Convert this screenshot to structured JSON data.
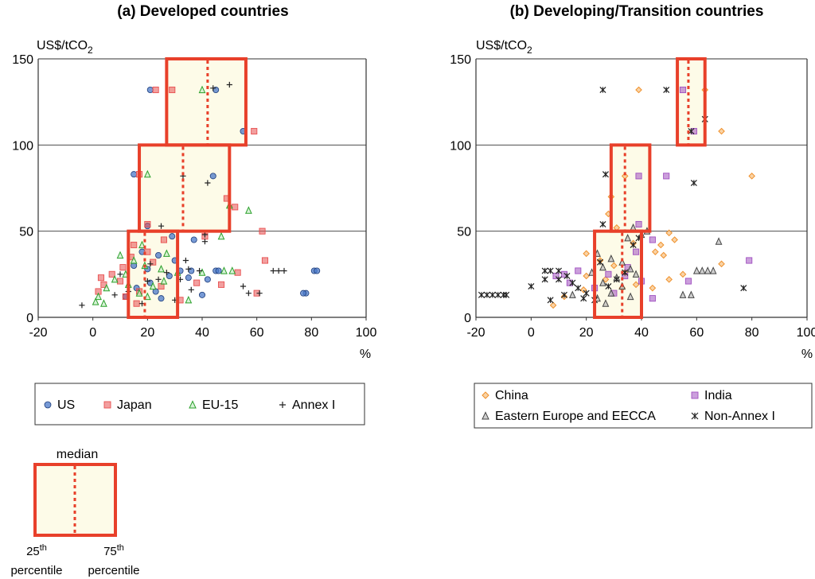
{
  "chart_data": [
    {
      "type": "scatter",
      "title": "(a) Developed countries",
      "ylabel": "US$/tCO",
      "ylabel_sub": "2",
      "xlabel": "%",
      "xlim": [
        -20,
        100
      ],
      "ylim": [
        0,
        150
      ],
      "xticks": [
        "-20",
        "0",
        "20",
        "40",
        "60",
        "80",
        "100"
      ],
      "yticks": [
        "0",
        "50",
        "100",
        "150"
      ],
      "grid": "horizontal",
      "legend_position": "below",
      "boxes": [
        {
          "y_range": [
            0,
            50
          ],
          "p25": 13,
          "median": 19,
          "p75": 31
        },
        {
          "y_range": [
            50,
            100
          ],
          "p25": 17,
          "median": 33,
          "p75": 50
        },
        {
          "y_range": [
            100,
            150
          ],
          "p25": 27,
          "median": 42,
          "p75": 56
        }
      ],
      "series": [
        {
          "name": "US",
          "marker": "circle",
          "color": "#4a78c8",
          "points": [
            [
              21,
              132
            ],
            [
              45,
              132
            ],
            [
              15,
              83
            ],
            [
              44,
              82
            ],
            [
              55,
              108
            ],
            [
              20,
              53
            ],
            [
              37,
              45
            ],
            [
              18,
              38
            ],
            [
              24,
              36
            ],
            [
              30,
              33
            ],
            [
              15,
              30
            ],
            [
              20,
              28
            ],
            [
              32,
              27
            ],
            [
              36,
              27
            ],
            [
              45,
              27
            ],
            [
              46,
              27
            ],
            [
              81,
              27
            ],
            [
              82,
              27
            ],
            [
              28,
              24
            ],
            [
              35,
              23
            ],
            [
              42,
              22
            ],
            [
              21,
              20
            ],
            [
              16,
              17
            ],
            [
              23,
              15
            ],
            [
              12,
              12
            ],
            [
              25,
              11
            ],
            [
              78,
              14
            ],
            [
              77,
              14
            ],
            [
              29,
              47
            ],
            [
              40,
              13
            ]
          ]
        },
        {
          "name": "Japan",
          "marker": "square",
          "color": "#e85050",
          "points": [
            [
              29,
              132
            ],
            [
              23,
              132
            ],
            [
              17,
              83
            ],
            [
              59,
              108
            ],
            [
              49,
              69
            ],
            [
              52,
              64
            ],
            [
              20,
              54
            ],
            [
              41,
              47
            ],
            [
              62,
              50
            ],
            [
              15,
              42
            ],
            [
              20,
              38
            ],
            [
              14,
              35
            ],
            [
              22,
              32
            ],
            [
              63,
              33
            ],
            [
              3,
              23
            ],
            [
              7,
              25
            ],
            [
              4,
              19
            ],
            [
              10,
              21
            ],
            [
              25,
              18
            ],
            [
              17,
              15
            ],
            [
              38,
              20
            ],
            [
              2,
              15
            ],
            [
              47,
              19
            ],
            [
              12,
              12
            ],
            [
              16,
              8
            ],
            [
              60,
              14
            ],
            [
              53,
              26
            ],
            [
              26,
              45
            ],
            [
              11,
              29
            ],
            [
              32,
              10
            ]
          ]
        },
        {
          "name": "EU-15",
          "marker": "triangle",
          "color": "#2aa02a",
          "points": [
            [
              40,
              132
            ],
            [
              20,
              83
            ],
            [
              50,
              65
            ],
            [
              57,
              62
            ],
            [
              47,
              47
            ],
            [
              18,
              42
            ],
            [
              10,
              36
            ],
            [
              15,
              33
            ],
            [
              19,
              30
            ],
            [
              25,
              28
            ],
            [
              8,
              22
            ],
            [
              12,
              25
            ],
            [
              5,
              17
            ],
            [
              2,
              12
            ],
            [
              1,
              9
            ],
            [
              17,
              14
            ],
            [
              22,
              18
            ],
            [
              31,
              26
            ],
            [
              40,
              26
            ],
            [
              48,
              27
            ],
            [
              51,
              27
            ],
            [
              26,
              21
            ],
            [
              13,
              19
            ],
            [
              4,
              8
            ],
            [
              20,
              12
            ],
            [
              35,
              10
            ],
            [
              27,
              37
            ]
          ]
        },
        {
          "name": "Annex I",
          "marker": "plus",
          "color": "#222222",
          "points": [
            [
              50,
              135
            ],
            [
              44,
              133
            ],
            [
              33,
              82
            ],
            [
              42,
              78
            ],
            [
              25,
              53
            ],
            [
              41,
              48
            ],
            [
              34,
              33
            ],
            [
              21,
              31
            ],
            [
              35,
              28
            ],
            [
              39,
              27
            ],
            [
              66,
              27
            ],
            [
              68,
              27
            ],
            [
              70,
              27
            ],
            [
              32,
              22
            ],
            [
              55,
              18
            ],
            [
              57,
              14
            ],
            [
              61,
              14
            ],
            [
              20,
              21
            ],
            [
              8,
              13
            ],
            [
              -4,
              7
            ],
            [
              13,
              15
            ],
            [
              24,
              22
            ],
            [
              30,
              10
            ],
            [
              10,
              25
            ],
            [
              18,
              8
            ],
            [
              27,
              26
            ],
            [
              36,
              16
            ],
            [
              41,
              44
            ]
          ]
        }
      ]
    },
    {
      "type": "scatter",
      "title": "(b) Developing/Transition countries",
      "ylabel": "US$/tCO",
      "ylabel_sub": "2",
      "xlabel": "%",
      "xlim": [
        -20,
        100
      ],
      "ylim": [
        0,
        150
      ],
      "xticks": [
        "-20",
        "0",
        "20",
        "40",
        "60",
        "80",
        "100"
      ],
      "yticks": [
        "0",
        "50",
        "100",
        "150"
      ],
      "grid": "horizontal",
      "legend_position": "below",
      "boxes": [
        {
          "y_range": [
            0,
            50
          ],
          "p25": 23,
          "median": 33,
          "p75": 40
        },
        {
          "y_range": [
            50,
            100
          ],
          "p25": 29,
          "median": 34,
          "p75": 43
        },
        {
          "y_range": [
            100,
            150
          ],
          "p25": 53,
          "median": 57,
          "p75": 63
        }
      ],
      "series": [
        {
          "name": "China",
          "marker": "diamond",
          "color": "#f0902a",
          "points": [
            [
              39,
              132
            ],
            [
              63,
              132
            ],
            [
              69,
              108
            ],
            [
              80,
              82
            ],
            [
              34,
              82
            ],
            [
              29,
              70
            ],
            [
              28,
              60
            ],
            [
              31,
              52
            ],
            [
              50,
              49
            ],
            [
              47,
              42
            ],
            [
              52,
              45
            ],
            [
              37,
              43
            ],
            [
              45,
              38
            ],
            [
              20,
              37
            ],
            [
              25,
              33
            ],
            [
              30,
              30
            ],
            [
              34,
              26
            ],
            [
              20,
              24
            ],
            [
              27,
              22
            ],
            [
              38,
              19
            ],
            [
              44,
              17
            ],
            [
              50,
              22
            ],
            [
              69,
              31
            ],
            [
              33,
              17
            ],
            [
              12,
              12
            ],
            [
              8,
              7
            ],
            [
              19,
              16
            ],
            [
              48,
              36
            ],
            [
              55,
              25
            ]
          ]
        },
        {
          "name": "India",
          "marker": "square",
          "color": "#a050c0",
          "points": [
            [
              55,
              132
            ],
            [
              59,
              108
            ],
            [
              39,
              82
            ],
            [
              49,
              82
            ],
            [
              39,
              54
            ],
            [
              44,
              45
            ],
            [
              38,
              38
            ],
            [
              12,
              25
            ],
            [
              17,
              27
            ],
            [
              28,
              25
            ],
            [
              34,
              24
            ],
            [
              40,
              21
            ],
            [
              57,
              21
            ],
            [
              79,
              33
            ],
            [
              44,
              11
            ],
            [
              30,
              14
            ],
            [
              23,
              17
            ],
            [
              9,
              24
            ],
            [
              14,
              20
            ],
            [
              35,
              29
            ]
          ]
        },
        {
          "name": "Eastern Europe and EECCA",
          "marker": "triangle",
          "color": "#444444",
          "points": [
            [
              37,
              52
            ],
            [
              42,
              50
            ],
            [
              40,
              48
            ],
            [
              35,
              46
            ],
            [
              24,
              37
            ],
            [
              29,
              34
            ],
            [
              33,
              32
            ],
            [
              26,
              29
            ],
            [
              36,
              28
            ],
            [
              22,
              26
            ],
            [
              31,
              23
            ],
            [
              26,
              20
            ],
            [
              33,
              18
            ],
            [
              29,
              14
            ],
            [
              24,
              11
            ],
            [
              36,
              12
            ],
            [
              38,
              25
            ],
            [
              60,
              27
            ],
            [
              62,
              27
            ],
            [
              64,
              27
            ],
            [
              66,
              27
            ],
            [
              68,
              44
            ],
            [
              55,
              13
            ],
            [
              58,
              13
            ],
            [
              27,
              8
            ],
            [
              15,
              13
            ]
          ]
        },
        {
          "name": "Non-Annex I",
          "marker": "star",
          "color": "#222222",
          "points": [
            [
              26,
              132
            ],
            [
              49,
              132
            ],
            [
              63,
              115
            ],
            [
              58,
              108
            ],
            [
              27,
              83
            ],
            [
              59,
              78
            ],
            [
              26,
              54
            ],
            [
              39,
              46
            ],
            [
              37,
              42
            ],
            [
              -16,
              13
            ],
            [
              -14,
              13
            ],
            [
              -12,
              13
            ],
            [
              -10,
              13
            ],
            [
              -9,
              13
            ],
            [
              -18,
              13
            ],
            [
              0,
              18
            ],
            [
              5,
              22
            ],
            [
              5,
              27
            ],
            [
              7,
              27
            ],
            [
              10,
              27
            ],
            [
              10,
              22
            ],
            [
              13,
              24
            ],
            [
              15,
              20
            ],
            [
              17,
              17
            ],
            [
              20,
              14
            ],
            [
              23,
              10
            ],
            [
              28,
              18
            ],
            [
              31,
              22
            ],
            [
              34,
              26
            ],
            [
              12,
              13
            ],
            [
              7,
              10
            ],
            [
              77,
              17
            ],
            [
              19,
              11
            ],
            [
              25,
              32
            ]
          ]
        }
      ]
    }
  ],
  "legend_a": [
    {
      "label": "US",
      "marker": "circle",
      "color": "#4a78c8"
    },
    {
      "label": "Japan",
      "marker": "square",
      "color": "#e85050"
    },
    {
      "label": "EU-15",
      "marker": "triangle",
      "color": "#2aa02a"
    },
    {
      "label": "Annex I",
      "marker": "plus",
      "color": "#222222"
    }
  ],
  "legend_b": [
    {
      "label": "China",
      "marker": "diamond",
      "color": "#f0902a"
    },
    {
      "label": "India",
      "marker": "square",
      "color": "#a050c0"
    },
    {
      "label": "Eastern Europe and EECCA",
      "marker": "triangle",
      "color": "#444444"
    },
    {
      "label": "Non-Annex I",
      "marker": "star",
      "color": "#222222"
    }
  ],
  "key": {
    "median_label": "median",
    "left_label_sup": "th",
    "left_label_num": "25",
    "left_label_word": "percentile",
    "right_label_num": "75",
    "right_label_sup": "th",
    "right_label_word": "percentile"
  },
  "colors": {
    "box_stroke": "#e8402a",
    "box_fill": "#fdfbe8",
    "median_line": "#e8402a",
    "grid": "#333333"
  }
}
